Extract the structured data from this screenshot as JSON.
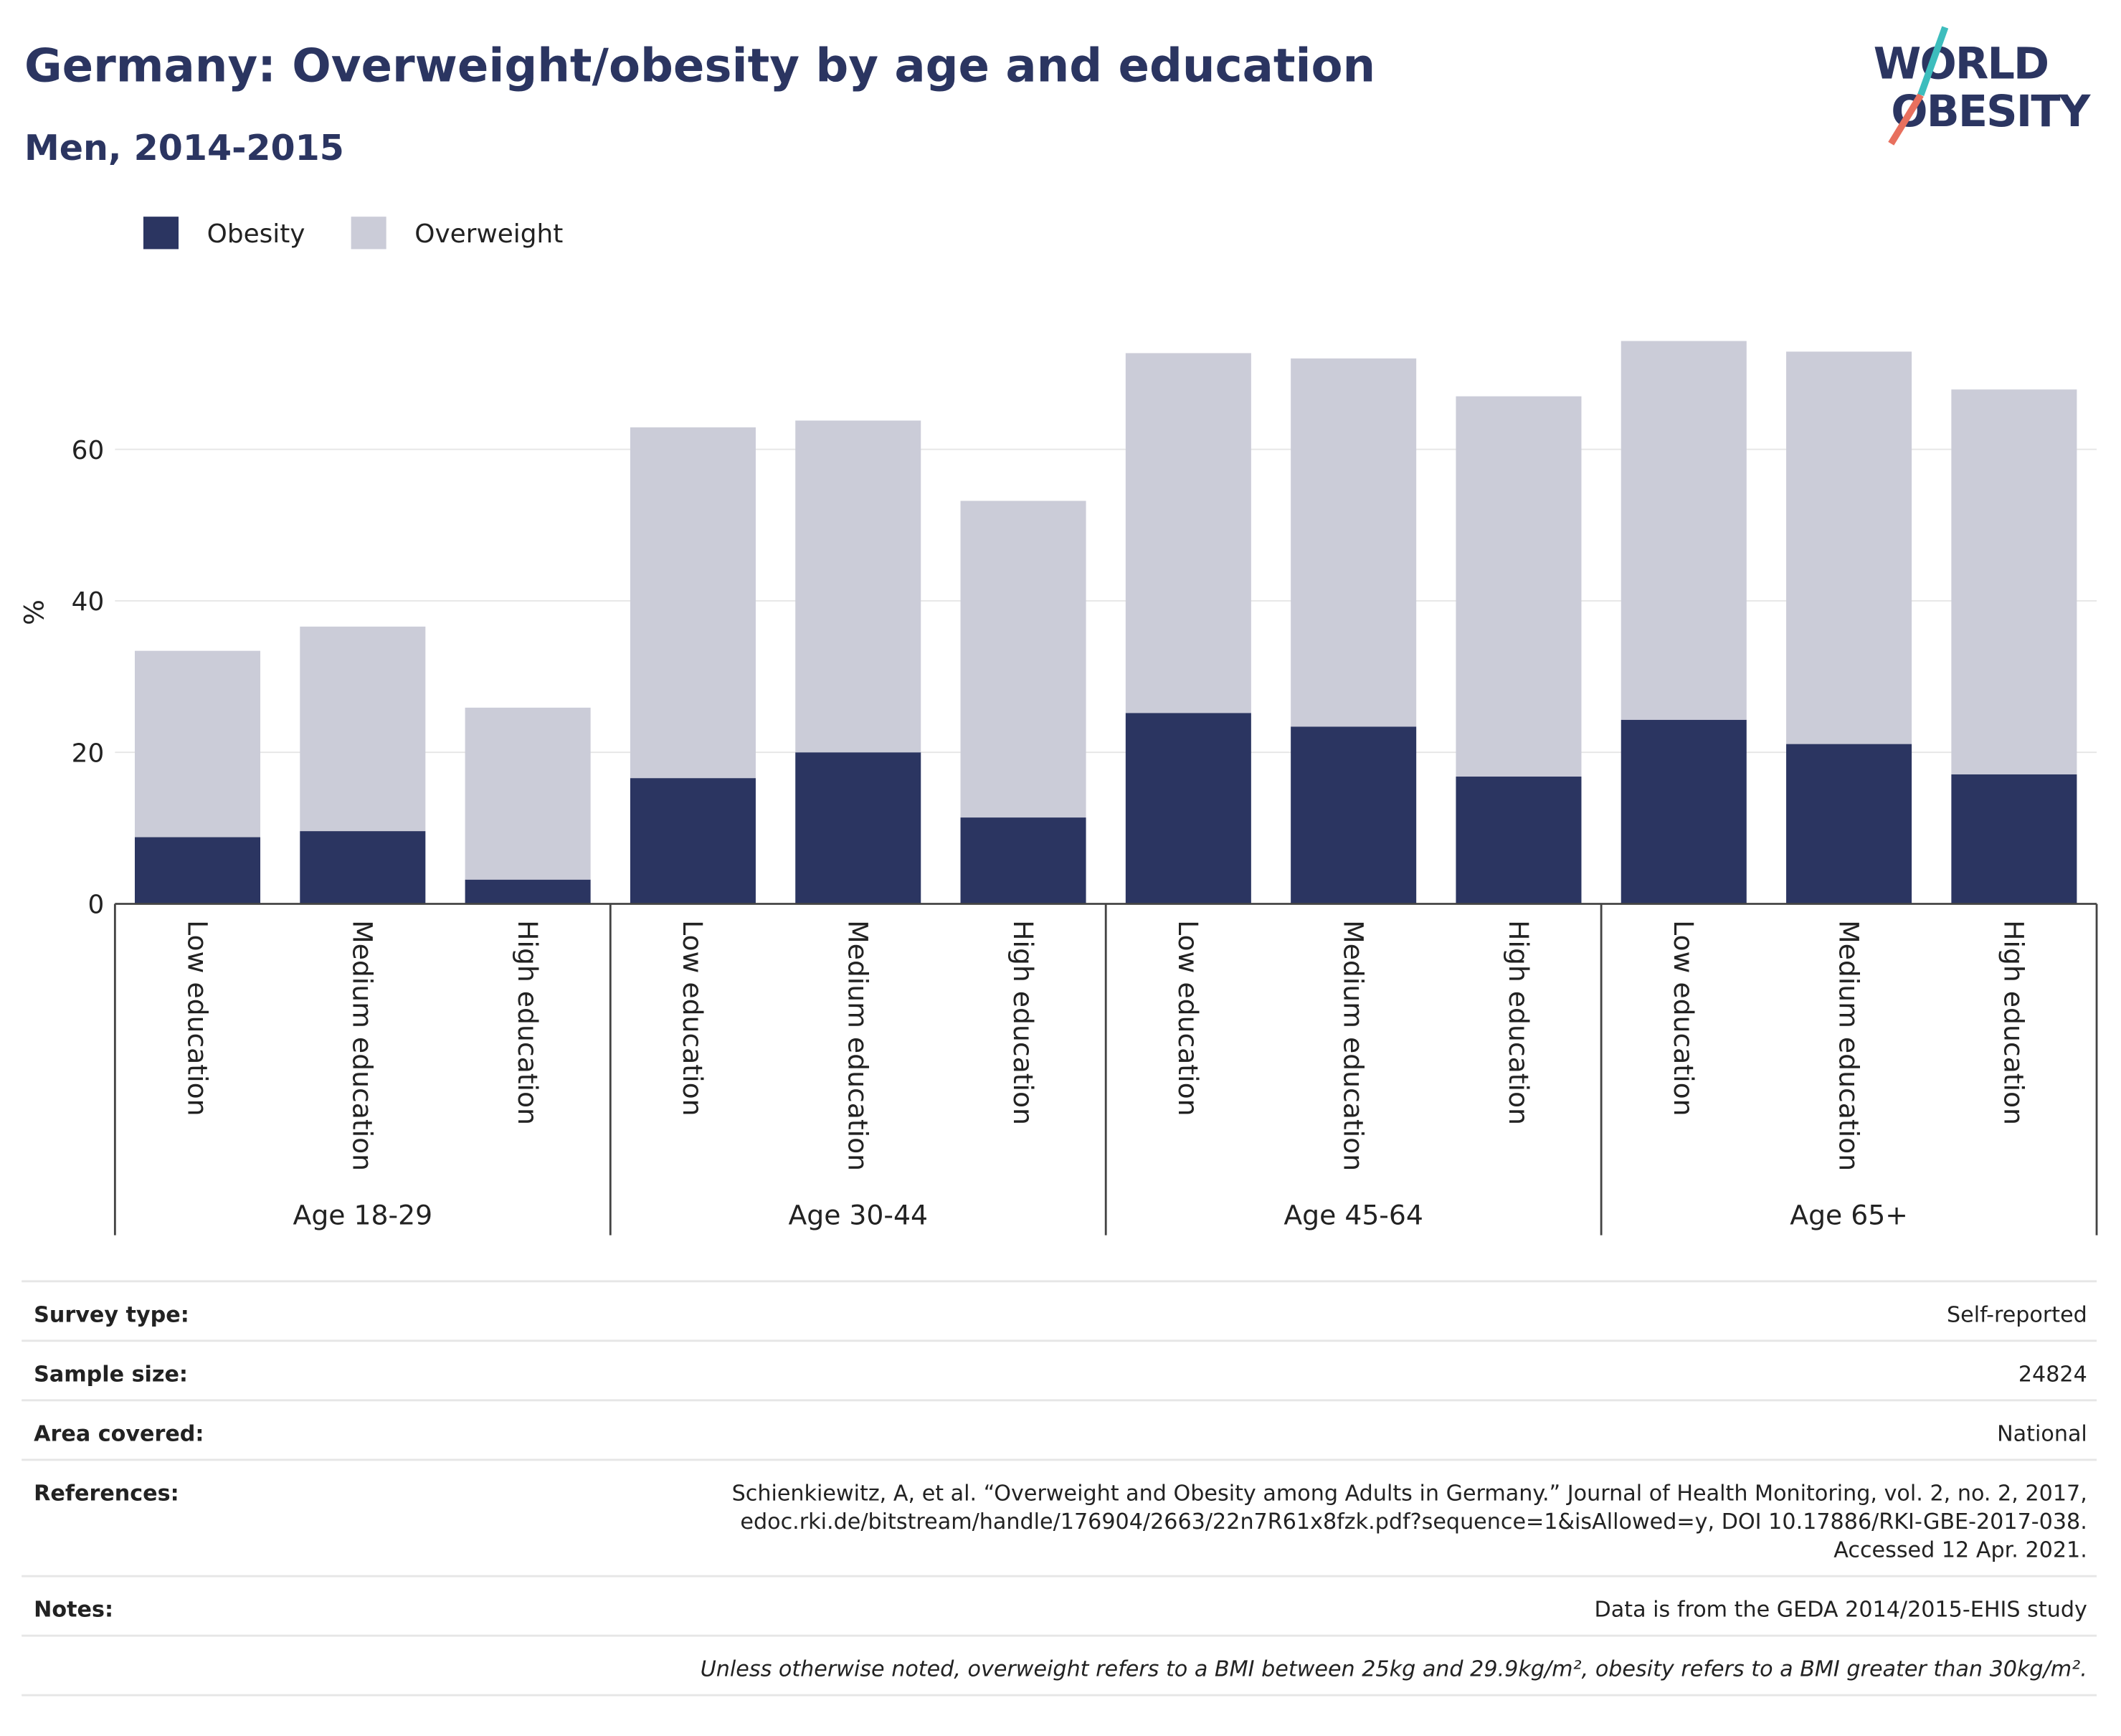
{
  "chart_data": {
    "type": "stacked-bar",
    "title": "Germany: Overweight/obesity by age and education",
    "subtitle": "Men, 2014-2015",
    "y_label": "%",
    "groups": [
      {
        "name": "Age 18-29",
        "categories": [
          "Low education",
          "Medium education",
          "High education"
        ]
      },
      {
        "name": "Age 30-44",
        "categories": [
          "Low education",
          "Medium education",
          "High education"
        ]
      },
      {
        "name": "Age 45-64",
        "categories": [
          "Low education",
          "Medium education",
          "High education"
        ]
      },
      {
        "name": "Age 65+",
        "categories": [
          "Low education",
          "Medium education",
          "High education"
        ]
      }
    ],
    "series": [
      {
        "name": "Obesity",
        "color": "#2b3561",
        "values": [
          8.8,
          9.6,
          3.2,
          16.6,
          20.0,
          11.4,
          25.2,
          23.4,
          16.8,
          24.3,
          21.1,
          17.1
        ]
      },
      {
        "name": "Overweight",
        "color": "#cbccd8",
        "values": [
          24.6,
          27.0,
          22.7,
          46.3,
          43.8,
          41.8,
          47.5,
          48.6,
          50.2,
          50.0,
          51.8,
          50.8
        ]
      }
    ],
    "ylim": [
      0,
      77
    ],
    "yticks": [
      0,
      20,
      40,
      60
    ],
    "grid": true,
    "legend": "top-left"
  },
  "logo": {
    "line1": "WORLD",
    "line2": "OBESITY"
  },
  "table": {
    "rows": [
      {
        "label": "Survey type:",
        "value": [
          "Self-reported"
        ]
      },
      {
        "label": "Sample size:",
        "value": [
          24824
        ]
      },
      {
        "label": "Area covered:",
        "value": [
          "National"
        ]
      },
      {
        "label": "References:",
        "value": [
          "Schienkiewitz, A, et al. “Overweight and Obesity among Adults in Germany.” Journal of Health Monitoring, vol. 2, no. 2, 2017,",
          "edoc.rki.de/bitstream/handle/176904/2663/22n7R61x8fzk.pdf?sequence=1&isAllowed=y, DOI 10.17886/RKI-GBE-2017-038.",
          "Accessed 12 Apr. 2021."
        ]
      },
      {
        "label": "Notes:",
        "value": [
          "Data is from the GEDA 2014/2015-EHIS study"
        ]
      }
    ],
    "footnote": "Unless otherwise noted, overweight refers to a BMI between 25kg and 29.9kg/m², obesity refers to a BMI greater than 30kg/m²."
  }
}
